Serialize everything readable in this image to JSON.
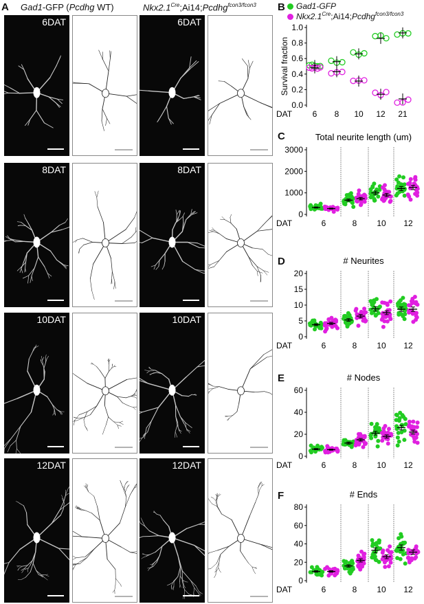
{
  "panel_letters": {
    "a": "A",
    "b": "B",
    "c": "C",
    "d": "D",
    "e": "E",
    "f": "F"
  },
  "headers": {
    "wt_gene": "Gad1",
    "wt_rest": "-GFP (",
    "wt_gene2": "Pcdhg",
    "wt_end": " WT)",
    "ko_a": "Nkx2.1",
    "ko_sup": "Cre",
    "ko_b": ";Ai14;",
    "ko_c": "Pcdhg",
    "ko_sup2": "fcon3/fcon3"
  },
  "row_labels": [
    "6DAT",
    "8DAT",
    "10DAT",
    "12DAT"
  ],
  "colors": {
    "green": "#22cc22",
    "magenta": "#e020e0",
    "black": "#000000"
  },
  "legend": {
    "green_label": "Gad1-GFP",
    "magenta_a": "Nkx2.1",
    "magenta_sup": "Cre",
    "magenta_b": ";Ai14;",
    "magenta_c": "Pcdhg",
    "magenta_sup2": "fcon3/fcon3"
  },
  "chart_data": [
    {
      "id": "B",
      "type": "scatter",
      "ylabel": "Survival fraction",
      "xlabel": "DAT",
      "categories": [
        "6",
        "8",
        "10",
        "12",
        "21"
      ],
      "ylim": [
        0,
        1.0
      ],
      "yticks": [
        "0.0",
        "0.2",
        "0.4",
        "0.6",
        "0.8",
        "1.0"
      ],
      "series": [
        {
          "name": "Gad1-GFP",
          "means": [
            0.51,
            0.56,
            0.66,
            0.86,
            0.93
          ]
        },
        {
          "name": "Nkx2.1Cre;Ai14;Pcdhgfcon3/fcon3",
          "means": [
            0.48,
            0.43,
            0.31,
            0.14,
            0.08
          ]
        }
      ]
    },
    {
      "id": "C",
      "type": "scatter",
      "title": "Total neurite length (um)",
      "xlabel": "DAT",
      "categories": [
        "6",
        "8",
        "10",
        "12"
      ],
      "ylim": [
        0,
        3000
      ],
      "yticks": [
        "0",
        "1000",
        "2000",
        "3000"
      ],
      "series": [
        {
          "name": "Gad1-GFP",
          "means": [
            320,
            660,
            1000,
            1200
          ]
        },
        {
          "name": "Nkx2.1Cre;Ai14;Pcdhgfcon3/fcon3",
          "means": [
            270,
            730,
            900,
            1250
          ]
        }
      ]
    },
    {
      "id": "D",
      "type": "scatter",
      "title": "# Neurites",
      "xlabel": "DAT",
      "categories": [
        "6",
        "8",
        "10",
        "12"
      ],
      "ylim": [
        0,
        20
      ],
      "yticks": [
        "0",
        "5",
        "10",
        "15",
        "20"
      ],
      "series": [
        {
          "name": "Gad1-GFP",
          "means": [
            3.8,
            5.3,
            8.8,
            8.7
          ]
        },
        {
          "name": "Nkx2.1Cre;Ai14;Pcdhgfcon3/fcon3",
          "means": [
            4.2,
            6.5,
            7.6,
            8.7
          ]
        }
      ]
    },
    {
      "id": "E",
      "type": "scatter",
      "title": "# Nodes",
      "xlabel": "DAT",
      "categories": [
        "6",
        "8",
        "10",
        "12"
      ],
      "ylim": [
        0,
        60
      ],
      "yticks": [
        "0",
        "20",
        "40",
        "60"
      ],
      "series": [
        {
          "name": "Gad1-GFP",
          "means": [
            6.5,
            12,
            21,
            26
          ]
        },
        {
          "name": "Nkx2.1Cre;Ai14;Pcdhgfcon3/fcon3",
          "means": [
            6,
            15,
            18,
            22
          ]
        }
      ]
    },
    {
      "id": "F",
      "type": "scatter",
      "title": "# Ends",
      "xlabel": "DAT",
      "categories": [
        "6",
        "8",
        "10",
        "12"
      ],
      "ylim": [
        0,
        80
      ],
      "yticks": [
        "0",
        "20",
        "40",
        "60",
        "80"
      ],
      "series": [
        {
          "name": "Gad1-GFP",
          "means": [
            10,
            16,
            33,
            36
          ]
        },
        {
          "name": "Nkx2.1Cre;Ai14;Pcdhgfcon3/fcon3",
          "means": [
            10,
            22,
            26,
            31
          ]
        }
      ]
    }
  ]
}
